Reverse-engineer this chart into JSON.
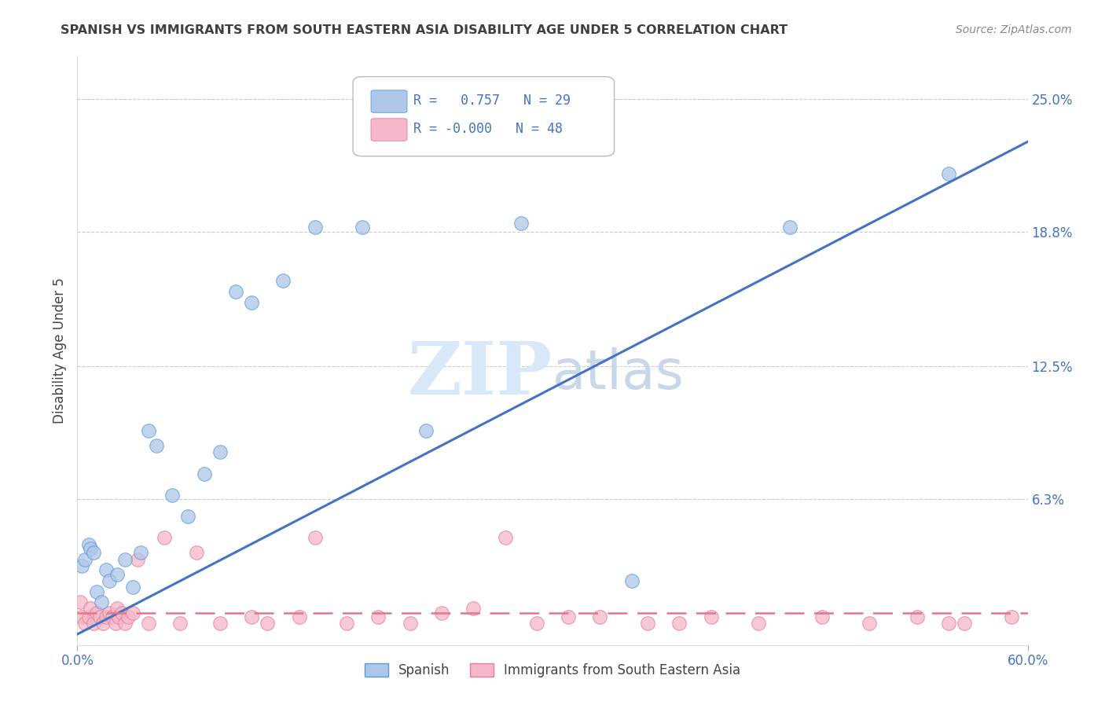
{
  "title": "SPANISH VS IMMIGRANTS FROM SOUTH EASTERN ASIA DISABILITY AGE UNDER 5 CORRELATION CHART",
  "source": "Source: ZipAtlas.com",
  "ylabel": "Disability Age Under 5",
  "ytick_labels": [
    "6.3%",
    "12.5%",
    "18.8%",
    "25.0%"
  ],
  "ytick_values": [
    6.3,
    12.5,
    18.8,
    25.0
  ],
  "xlim": [
    0.0,
    60.0
  ],
  "ylim": [
    -0.5,
    27.0
  ],
  "legend_blue_R": "0.757",
  "legend_blue_N": "29",
  "legend_pink_R": "-0.000",
  "legend_pink_N": "48",
  "blue_color": "#AEC6E8",
  "blue_edge_color": "#5B9BD5",
  "pink_color": "#F4B8C8",
  "pink_edge_color": "#E87A9A",
  "blue_line_color": "#4472C4",
  "pink_line_color": "#E8748A",
  "tick_color": "#4472C4",
  "grid_color": "#CCCCCC",
  "title_color": "#404040",
  "source_color": "#888888",
  "watermark_color": "#D8E8F8",
  "blue_line_x0": 0.0,
  "blue_line_y0": 0.0,
  "blue_line_x1": 60.0,
  "blue_line_y1": 23.0,
  "pink_line_x0": 0.0,
  "pink_line_y0": 1.0,
  "pink_line_x1": 60.0,
  "pink_line_y1": 1.0,
  "spanish_x": [
    0.3,
    0.5,
    0.7,
    0.8,
    1.0,
    1.2,
    1.5,
    1.8,
    2.0,
    2.5,
    3.0,
    3.5,
    4.0,
    4.5,
    5.0,
    6.0,
    7.0,
    8.0,
    9.0,
    10.0,
    11.0,
    13.0,
    15.0,
    18.0,
    22.0,
    28.0,
    35.0,
    45.0,
    55.0
  ],
  "spanish_y": [
    3.2,
    3.5,
    4.2,
    4.0,
    3.8,
    2.0,
    1.5,
    3.0,
    2.5,
    2.8,
    3.5,
    2.2,
    3.8,
    9.5,
    8.8,
    6.5,
    5.5,
    7.5,
    8.5,
    16.0,
    15.5,
    16.5,
    19.0,
    19.0,
    9.5,
    19.2,
    2.5,
    19.0,
    21.5
  ],
  "immigrants_x": [
    0.2,
    0.3,
    0.5,
    0.7,
    0.8,
    1.0,
    1.2,
    1.4,
    1.6,
    1.8,
    2.0,
    2.2,
    2.4,
    2.5,
    2.6,
    2.8,
    3.0,
    3.2,
    3.5,
    3.8,
    4.5,
    5.5,
    6.5,
    7.5,
    9.0,
    11.0,
    12.0,
    14.0,
    15.0,
    17.0,
    19.0,
    21.0,
    23.0,
    27.0,
    31.0,
    36.0,
    40.0,
    43.0,
    47.0,
    50.0,
    53.0,
    56.0,
    59.0,
    25.0,
    29.0,
    33.0,
    38.0,
    55.0
  ],
  "immigrants_y": [
    1.5,
    0.8,
    0.5,
    0.8,
    1.2,
    0.5,
    1.0,
    0.8,
    0.5,
    0.8,
    1.0,
    0.8,
    0.5,
    1.2,
    0.8,
    1.0,
    0.5,
    0.8,
    1.0,
    3.5,
    0.5,
    4.5,
    0.5,
    3.8,
    0.5,
    0.8,
    0.5,
    0.8,
    4.5,
    0.5,
    0.8,
    0.5,
    1.0,
    4.5,
    0.8,
    0.5,
    0.8,
    0.5,
    0.8,
    0.5,
    0.8,
    0.5,
    0.8,
    1.2,
    0.5,
    0.8,
    0.5,
    0.5
  ]
}
